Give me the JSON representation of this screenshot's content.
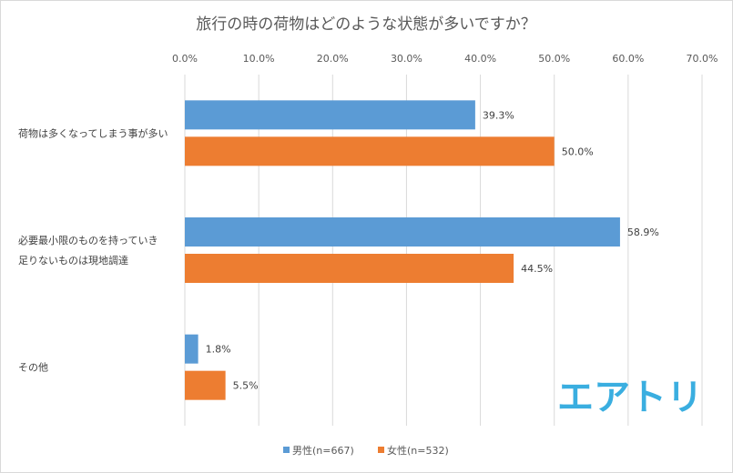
{
  "chart_data": {
    "type": "bar",
    "orientation": "horizontal",
    "title": "旅行の時の荷物はどのような状態が多いですか？",
    "categories": [
      [
        "荷物は多くなってしまう事が多い"
      ],
      [
        "必要最小限のものを持っていき",
        "足りないものは現地調達"
      ],
      [
        "その他"
      ]
    ],
    "series": [
      {
        "name": "男性(n=667)",
        "color": "#5b9bd5",
        "values": [
          39.3,
          58.9,
          1.8
        ]
      },
      {
        "name": "女性(n=532)",
        "color": "#ed7d31",
        "values": [
          50.0,
          44.5,
          5.5
        ]
      }
    ],
    "xlim": [
      0,
      70
    ],
    "ticks": [
      "0.0%",
      "10.0%",
      "20.0%",
      "30.0%",
      "40.0%",
      "50.0%",
      "60.0%",
      "70.0%"
    ],
    "data_labels": [
      [
        "39.3%",
        "58.9%",
        "1.8%"
      ],
      [
        "50.0%",
        "44.5%",
        "5.5%"
      ]
    ],
    "grid": true,
    "legend_position": "bottom"
  },
  "brand": {
    "logo_text": "エアトリ",
    "color": "#3aaee0"
  }
}
